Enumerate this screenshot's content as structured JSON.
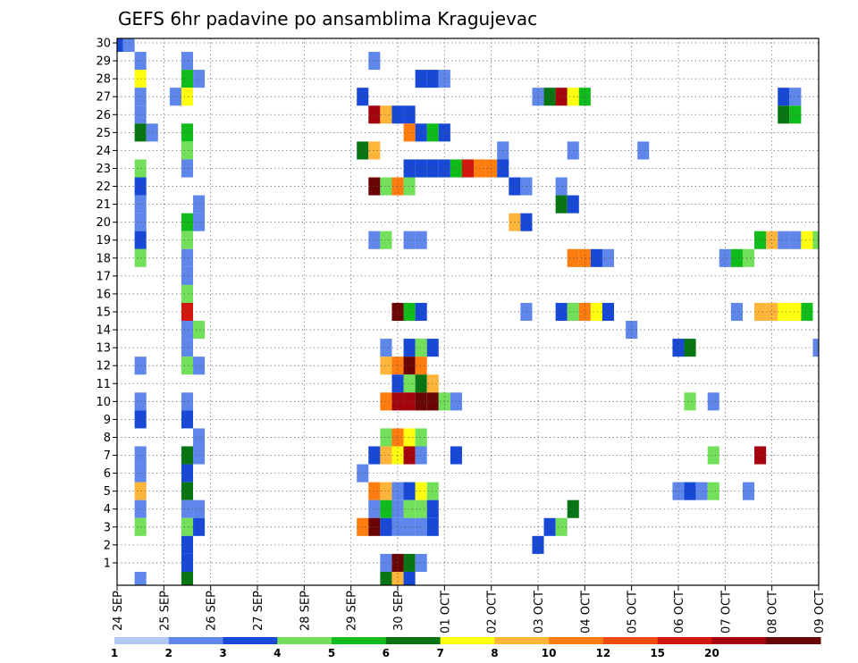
{
  "chart_data": {
    "type": "heatmap",
    "title": "GEFS 6hr padavine po ansamblima Kragujevac",
    "xlabel": "",
    "ylabel": "",
    "x_tick_labels": [
      "24 SEP",
      "25 SEP",
      "26 SEP",
      "27 SEP",
      "28 SEP",
      "29 SEP",
      "30 SEP",
      "01 OCT",
      "02 OCT",
      "03 OCT",
      "04 OCT",
      "05 OCT",
      "06 OCT",
      "07 OCT",
      "08 OCT",
      "09 OCT"
    ],
    "x_range_6h_steps": [
      0,
      60
    ],
    "y_range": [
      0,
      30
    ],
    "y_ticks": [
      1,
      2,
      3,
      4,
      5,
      6,
      7,
      8,
      9,
      10,
      11,
      12,
      13,
      14,
      15,
      16,
      17,
      18,
      19,
      20,
      21,
      22,
      23,
      24,
      25,
      26,
      27,
      28,
      29,
      30
    ],
    "grid": true,
    "legend_placement": "bottom",
    "color_levels": [
      {
        "label": "1",
        "color": "#b3c6f4"
      },
      {
        "label": "2",
        "color": "#5f86ea"
      },
      {
        "label": "3",
        "color": "#1848d6"
      },
      {
        "label": "4",
        "color": "#72e05a"
      },
      {
        "label": "5",
        "color": "#10bb1c"
      },
      {
        "label": "6",
        "color": "#087515"
      },
      {
        "label": "7",
        "color": "#ffff0f"
      },
      {
        "label": "8",
        "color": "#ffb43a"
      },
      {
        "label": "10",
        "color": "#ff7d0f"
      },
      {
        "label": "12",
        "color": "#ee4a0a"
      },
      {
        "label": "15",
        "color": "#d3170d"
      },
      {
        "label": "20",
        "color": "#a3040d"
      },
      {
        "label": "",
        "color": "#6b0404"
      }
    ],
    "cells": [
      [
        0,
        30,
        2
      ],
      [
        1,
        30,
        1
      ],
      [
        2,
        29,
        1
      ],
      [
        6,
        29,
        1
      ],
      [
        22,
        29,
        1
      ],
      [
        2,
        28,
        6
      ],
      [
        6,
        28,
        4
      ],
      [
        7,
        28,
        1
      ],
      [
        26,
        28,
        2
      ],
      [
        27,
        28,
        2
      ],
      [
        28,
        28,
        1
      ],
      [
        2,
        27,
        1
      ],
      [
        5,
        27,
        1
      ],
      [
        6,
        27,
        6
      ],
      [
        21,
        27,
        2
      ],
      [
        36,
        27,
        1
      ],
      [
        37,
        27,
        5
      ],
      [
        38,
        27,
        11
      ],
      [
        39,
        27,
        6
      ],
      [
        40,
        27,
        4
      ],
      [
        57,
        27,
        2
      ],
      [
        58,
        27,
        1
      ],
      [
        2,
        26,
        1
      ],
      [
        22,
        26,
        11
      ],
      [
        23,
        26,
        7
      ],
      [
        24,
        26,
        2
      ],
      [
        25,
        26,
        2
      ],
      [
        57,
        26,
        5
      ],
      [
        58,
        26,
        4
      ],
      [
        2,
        25,
        5
      ],
      [
        3,
        25,
        1
      ],
      [
        6,
        25,
        4
      ],
      [
        25,
        25,
        8
      ],
      [
        26,
        25,
        2
      ],
      [
        27,
        25,
        4
      ],
      [
        28,
        25,
        2
      ],
      [
        6,
        24,
        3
      ],
      [
        21,
        24,
        5
      ],
      [
        22,
        24,
        7
      ],
      [
        33,
        24,
        1
      ],
      [
        39,
        24,
        1
      ],
      [
        45,
        24,
        1
      ],
      [
        2,
        23,
        3
      ],
      [
        6,
        23,
        1
      ],
      [
        25,
        23,
        2
      ],
      [
        26,
        23,
        2
      ],
      [
        27,
        23,
        2
      ],
      [
        28,
        23,
        2
      ],
      [
        29,
        23,
        4
      ],
      [
        30,
        23,
        10
      ],
      [
        31,
        23,
        8
      ],
      [
        32,
        23,
        8
      ],
      [
        33,
        23,
        2
      ],
      [
        2,
        22,
        2
      ],
      [
        22,
        22,
        12
      ],
      [
        23,
        22,
        3
      ],
      [
        24,
        22,
        8
      ],
      [
        25,
        22,
        3
      ],
      [
        34,
        22,
        2
      ],
      [
        35,
        22,
        1
      ],
      [
        38,
        22,
        1
      ],
      [
        2,
        21,
        1
      ],
      [
        7,
        21,
        1
      ],
      [
        38,
        21,
        5
      ],
      [
        39,
        21,
        2
      ],
      [
        2,
        20,
        1
      ],
      [
        6,
        20,
        4
      ],
      [
        7,
        20,
        1
      ],
      [
        34,
        20,
        7
      ],
      [
        35,
        20,
        2
      ],
      [
        2,
        19,
        2
      ],
      [
        6,
        19,
        3
      ],
      [
        22,
        19,
        1
      ],
      [
        23,
        19,
        3
      ],
      [
        25,
        19,
        1
      ],
      [
        26,
        19,
        1
      ],
      [
        55,
        19,
        4
      ],
      [
        56,
        19,
        7
      ],
      [
        57,
        19,
        1
      ],
      [
        58,
        19,
        1
      ],
      [
        59,
        19,
        6
      ],
      [
        60,
        19,
        3
      ],
      [
        2,
        18,
        3
      ],
      [
        6,
        18,
        1
      ],
      [
        39,
        18,
        8
      ],
      [
        40,
        18,
        8
      ],
      [
        41,
        18,
        2
      ],
      [
        42,
        18,
        1
      ],
      [
        52,
        18,
        1
      ],
      [
        53,
        18,
        4
      ],
      [
        54,
        18,
        3
      ],
      [
        6,
        17,
        1
      ],
      [
        6,
        16,
        3
      ],
      [
        6,
        15,
        10
      ],
      [
        24,
        15,
        12
      ],
      [
        25,
        15,
        4
      ],
      [
        26,
        15,
        2
      ],
      [
        35,
        15,
        1
      ],
      [
        38,
        15,
        2
      ],
      [
        39,
        15,
        3
      ],
      [
        40,
        15,
        8
      ],
      [
        41,
        15,
        6
      ],
      [
        42,
        15,
        2
      ],
      [
        53,
        15,
        1
      ],
      [
        55,
        15,
        7
      ],
      [
        56,
        15,
        7
      ],
      [
        57,
        15,
        6
      ],
      [
        58,
        15,
        6
      ],
      [
        59,
        15,
        4
      ],
      [
        6,
        14,
        1
      ],
      [
        7,
        14,
        3
      ],
      [
        44,
        14,
        1
      ],
      [
        6,
        13,
        1
      ],
      [
        23,
        13,
        1
      ],
      [
        25,
        13,
        2
      ],
      [
        26,
        13,
        3
      ],
      [
        27,
        13,
        2
      ],
      [
        48,
        13,
        2
      ],
      [
        49,
        13,
        5
      ],
      [
        60,
        13,
        1
      ],
      [
        2,
        12,
        1
      ],
      [
        6,
        12,
        3
      ],
      [
        7,
        12,
        1
      ],
      [
        23,
        12,
        7
      ],
      [
        24,
        12,
        8
      ],
      [
        25,
        12,
        12
      ],
      [
        26,
        12,
        8
      ],
      [
        24,
        11,
        2
      ],
      [
        25,
        11,
        3
      ],
      [
        26,
        11,
        5
      ],
      [
        27,
        11,
        7
      ],
      [
        2,
        10,
        1
      ],
      [
        6,
        10,
        1
      ],
      [
        23,
        10,
        8
      ],
      [
        24,
        10,
        11
      ],
      [
        25,
        10,
        11
      ],
      [
        26,
        10,
        12
      ],
      [
        27,
        10,
        12
      ],
      [
        28,
        10,
        3
      ],
      [
        29,
        10,
        1
      ],
      [
        49,
        10,
        3
      ],
      [
        51,
        10,
        1
      ],
      [
        2,
        9,
        2
      ],
      [
        6,
        9,
        2
      ],
      [
        7,
        8,
        1
      ],
      [
        23,
        8,
        3
      ],
      [
        24,
        8,
        8
      ],
      [
        25,
        8,
        6
      ],
      [
        26,
        8,
        3
      ],
      [
        2,
        7,
        1
      ],
      [
        6,
        7,
        5
      ],
      [
        7,
        7,
        1
      ],
      [
        22,
        7,
        2
      ],
      [
        23,
        7,
        7
      ],
      [
        24,
        7,
        6
      ],
      [
        25,
        7,
        11
      ],
      [
        26,
        7,
        1
      ],
      [
        29,
        7,
        2
      ],
      [
        51,
        7,
        3
      ],
      [
        55,
        7,
        11
      ],
      [
        2,
        6,
        1
      ],
      [
        6,
        6,
        2
      ],
      [
        21,
        6,
        1
      ],
      [
        2,
        5,
        7
      ],
      [
        6,
        5,
        5
      ],
      [
        22,
        5,
        8
      ],
      [
        23,
        5,
        7
      ],
      [
        24,
        5,
        1
      ],
      [
        25,
        5,
        2
      ],
      [
        26,
        5,
        6
      ],
      [
        27,
        5,
        3
      ],
      [
        48,
        5,
        1
      ],
      [
        49,
        5,
        2
      ],
      [
        50,
        5,
        1
      ],
      [
        51,
        5,
        3
      ],
      [
        54,
        5,
        1
      ],
      [
        2,
        4,
        1
      ],
      [
        6,
        4,
        1
      ],
      [
        7,
        4,
        1
      ],
      [
        22,
        4,
        1
      ],
      [
        23,
        4,
        4
      ],
      [
        24,
        4,
        1
      ],
      [
        25,
        4,
        3
      ],
      [
        26,
        4,
        3
      ],
      [
        27,
        4,
        2
      ],
      [
        39,
        4,
        5
      ],
      [
        2,
        3,
        3
      ],
      [
        6,
        3,
        3
      ],
      [
        7,
        3,
        2
      ],
      [
        21,
        3,
        8
      ],
      [
        22,
        3,
        12
      ],
      [
        23,
        3,
        2
      ],
      [
        24,
        3,
        1
      ],
      [
        25,
        3,
        1
      ],
      [
        26,
        3,
        1
      ],
      [
        27,
        3,
        2
      ],
      [
        37,
        3,
        2
      ],
      [
        38,
        3,
        3
      ],
      [
        6,
        2,
        2
      ],
      [
        36,
        2,
        2
      ],
      [
        6,
        1,
        2
      ],
      [
        23,
        1,
        1
      ],
      [
        24,
        1,
        12
      ],
      [
        25,
        1,
        5
      ],
      [
        26,
        1,
        1
      ],
      [
        2,
        0,
        1
      ],
      [
        6,
        0,
        5
      ],
      [
        23,
        0,
        5
      ],
      [
        24,
        0,
        7
      ],
      [
        25,
        0,
        2
      ]
    ]
  }
}
